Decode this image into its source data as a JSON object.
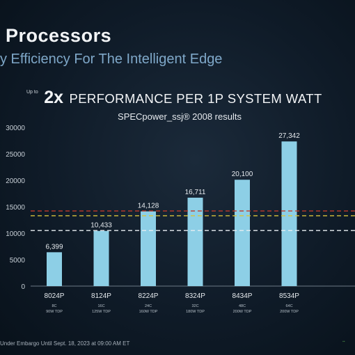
{
  "header": {
    "title": "Processors",
    "subtitle": "y Efficiency For The Intelligent Edge"
  },
  "headline": {
    "up_to": "Up to",
    "multiplier": "2x",
    "rest": "PERFORMANCE PER 1P SYSTEM WATT"
  },
  "footer": {
    "embargo": "Under Embargo Until Sept. 18, 2023 at 09:00 AM ET"
  },
  "colors": {
    "bar": "#8dcfe6",
    "ref_line_red": "#c0392b",
    "ref_line_yellow": "#d9c23a",
    "ref_line_white": "#e8eef2"
  },
  "chart_data": {
    "type": "bar",
    "subtitle": "SPECpower_ssj® 2008 results",
    "categories": [
      "8024P",
      "8124P",
      "8224P",
      "8324P",
      "8434P",
      "8534P"
    ],
    "category_details": [
      [
        "8C",
        "90W TDP"
      ],
      [
        "16C",
        "125W TDP"
      ],
      [
        "24C",
        "160W TDP"
      ],
      [
        "32C",
        "180W TDP"
      ],
      [
        "48C",
        "200W TDP"
      ],
      [
        "64C",
        "200W TDP"
      ]
    ],
    "values": [
      6399,
      10433,
      14128,
      16711,
      20100,
      27342
    ],
    "value_labels": [
      "6,399",
      "10,433",
      "14,128",
      "16,711",
      "20,100",
      "27,342"
    ],
    "ylim": [
      0,
      30000
    ],
    "yticks": [
      0,
      5000,
      10000,
      15000,
      20000,
      25000,
      30000
    ],
    "reference_lines": [
      {
        "value": 14200,
        "style": "dashed",
        "color": "red"
      },
      {
        "value": 13300,
        "style": "dashed",
        "color": "yellow"
      },
      {
        "value": 10500,
        "style": "dashed",
        "color": "white"
      }
    ],
    "grid": false
  }
}
